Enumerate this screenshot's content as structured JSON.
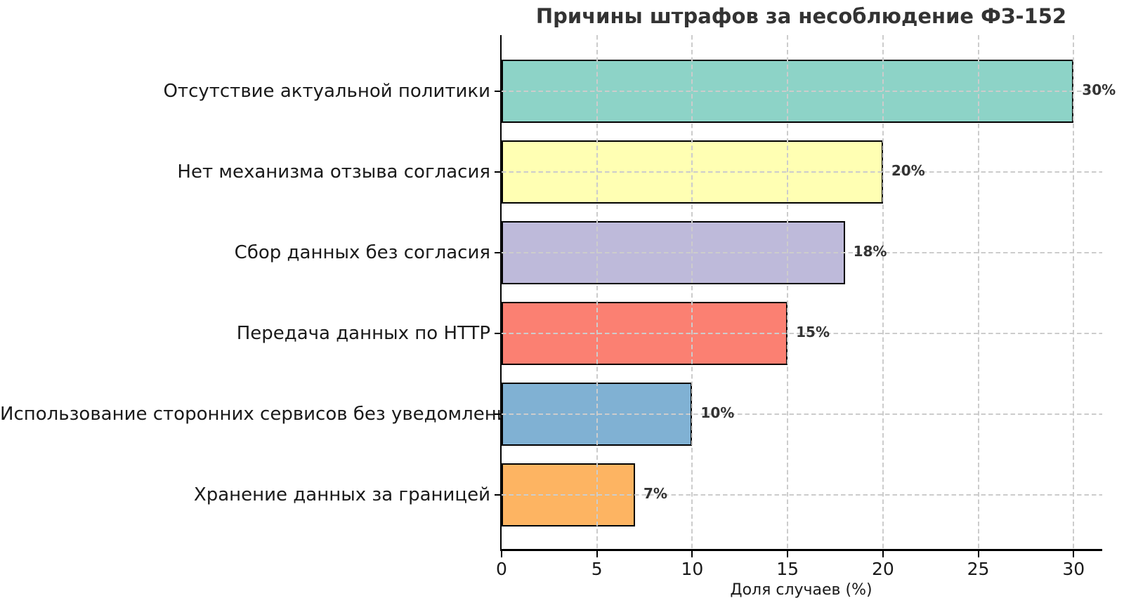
{
  "chart_data": {
    "type": "bar",
    "orientation": "horizontal",
    "title": "Причины штрафов за несоблюдение ФЗ-152",
    "xlabel": "Доля случаев (%)",
    "ylabel": "",
    "categories": [
      "Отсутствие актуальной политики",
      "Нет механизма отзыва согласия",
      "Сбор данных без согласия",
      "Передача данных по HTTP",
      "Использование сторонних сервисов без уведомления",
      "Хранение данных за границей"
    ],
    "values": [
      30,
      20,
      18,
      15,
      10,
      7
    ],
    "value_labels": [
      "30%",
      "20%",
      "18%",
      "15%",
      "10%",
      "7%"
    ],
    "bar_colors": [
      "#8dd3c7",
      "#ffffb3",
      "#bebada",
      "#fb8072",
      "#80b1d3",
      "#fdb462"
    ],
    "bar_edge_color": "#000000",
    "xlim": [
      0,
      31.5
    ],
    "xticks": [
      0,
      5,
      10,
      15,
      20,
      25,
      30
    ],
    "grid": "dashed gridlines on both axes, drawn on top of bars",
    "grid_color": "#cccccc",
    "legend": "none",
    "background_color": "#ffffff",
    "text_color": "#1a1a1a",
    "value_label_color": "#333333"
  }
}
